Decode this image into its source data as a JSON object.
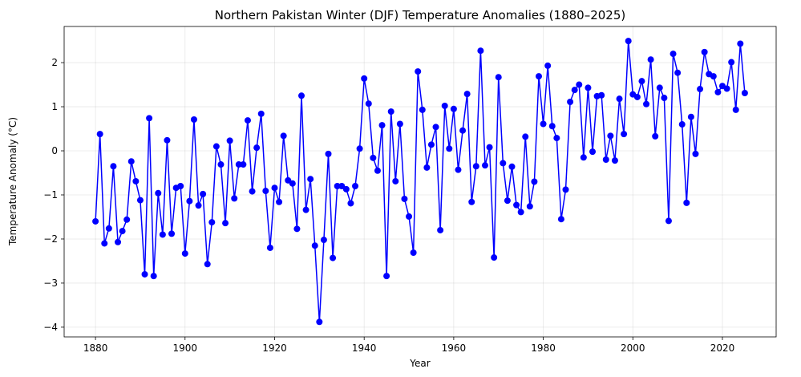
{
  "chart_data": {
    "type": "line",
    "title": "Northern Pakistan Winter (DJF) Temperature Anomalies (1880–2025)",
    "xlabel": "Year",
    "ylabel": "Temperature Anomaly (°C)",
    "xlim": [
      1873,
      2032
    ],
    "ylim": [
      -4.22,
      2.82
    ],
    "xticks": [
      1880,
      1900,
      1920,
      1940,
      1960,
      1980,
      2000,
      2020
    ],
    "yticks": [
      -4,
      -3,
      -2,
      -1,
      0,
      1,
      2
    ],
    "grid": true,
    "color": "#0000ff",
    "marker": "circle",
    "x": [
      1880,
      1881,
      1882,
      1883,
      1884,
      1885,
      1886,
      1887,
      1888,
      1889,
      1890,
      1891,
      1892,
      1893,
      1894,
      1895,
      1896,
      1897,
      1898,
      1899,
      1900,
      1901,
      1902,
      1903,
      1904,
      1905,
      1906,
      1907,
      1908,
      1909,
      1910,
      1911,
      1912,
      1913,
      1914,
      1915,
      1916,
      1917,
      1918,
      1919,
      1920,
      1921,
      1922,
      1923,
      1924,
      1925,
      1926,
      1927,
      1928,
      1929,
      1930,
      1931,
      1932,
      1933,
      1934,
      1935,
      1936,
      1937,
      1938,
      1939,
      1940,
      1941,
      1942,
      1943,
      1944,
      1945,
      1946,
      1947,
      1948,
      1949,
      1950,
      1951,
      1952,
      1953,
      1954,
      1955,
      1956,
      1957,
      1958,
      1959,
      1960,
      1961,
      1962,
      1963,
      1964,
      1965,
      1966,
      1967,
      1968,
      1969,
      1970,
      1971,
      1972,
      1973,
      1974,
      1975,
      1976,
      1977,
      1978,
      1979,
      1980,
      1981,
      1982,
      1983,
      1984,
      1985,
      1986,
      1987,
      1988,
      1989,
      1990,
      1991,
      1992,
      1993,
      1994,
      1995,
      1996,
      1997,
      1998,
      1999,
      2000,
      2001,
      2002,
      2003,
      2004,
      2005,
      2006,
      2007,
      2008,
      2009,
      2010,
      2011,
      2012,
      2013,
      2014,
      2015,
      2016,
      2017,
      2018,
      2019,
      2020,
      2021,
      2022,
      2023,
      2024,
      2025
    ],
    "y": [
      -1.6,
      0.38,
      -2.1,
      -1.76,
      -0.35,
      -2.07,
      -1.82,
      -1.56,
      -0.24,
      -0.69,
      -1.12,
      -2.8,
      0.74,
      -2.84,
      -0.96,
      -1.9,
      0.24,
      -1.88,
      -0.84,
      -0.8,
      -2.33,
      -1.14,
      0.71,
      -1.24,
      -0.98,
      -2.57,
      -1.62,
      0.1,
      -0.31,
      -1.64,
      0.23,
      -1.08,
      -0.31,
      -0.31,
      0.69,
      -0.92,
      0.07,
      0.84,
      -0.91,
      -2.2,
      -0.84,
      -1.16,
      0.34,
      -0.67,
      -0.74,
      -1.77,
      1.25,
      -1.34,
      -0.64,
      -2.15,
      -3.88,
      -2.02,
      -0.07,
      -2.43,
      -0.8,
      -0.8,
      -0.87,
      -1.19,
      -0.8,
      0.05,
      1.64,
      1.07,
      -0.16,
      -0.45,
      0.58,
      -2.84,
      0.89,
      -0.69,
      0.61,
      -1.09,
      -1.49,
      -2.31,
      1.8,
      0.93,
      -0.38,
      0.14,
      0.54,
      -1.8,
      1.02,
      0.05,
      0.95,
      -0.43,
      0.46,
      1.29,
      -1.16,
      -0.35,
      2.27,
      -0.33,
      0.08,
      -2.42,
      1.67,
      -0.28,
      -1.13,
      -0.36,
      -1.23,
      -1.39,
      0.32,
      -1.26,
      -0.7,
      1.69,
      0.61,
      1.93,
      0.56,
      0.29,
      -1.55,
      -0.88,
      1.11,
      1.38,
      1.5,
      -0.15,
      1.43,
      -0.02,
      1.24,
      1.26,
      -0.2,
      0.34,
      -0.22,
      1.18,
      0.38,
      2.49,
      1.28,
      1.22,
      1.58,
      1.06,
      2.07,
      0.33,
      1.43,
      1.2,
      -1.59,
      2.2,
      1.77,
      0.6,
      -1.18,
      0.77,
      -0.07,
      1.4,
      2.24,
      1.74,
      1.69,
      1.33,
      1.47,
      1.41,
      2.01,
      0.93,
      2.43,
      1.31
    ]
  }
}
